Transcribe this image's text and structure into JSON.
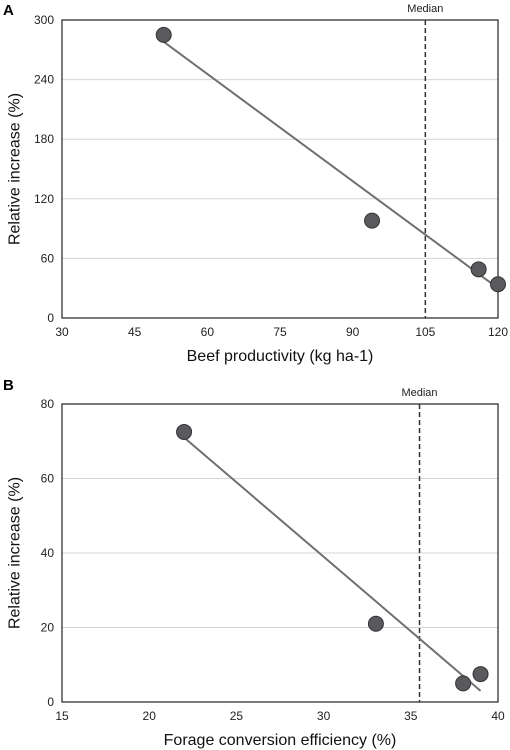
{
  "chart_data": [
    {
      "panel": "A",
      "type": "scatter",
      "xlabel": "Beef productivity (kg ha-1)",
      "ylabel": "Relative increase (%)",
      "xlim": [
        30,
        120
      ],
      "ylim": [
        0,
        300
      ],
      "xticks": [
        30,
        45,
        60,
        75,
        90,
        105,
        120
      ],
      "yticks": [
        0,
        60,
        120,
        180,
        240,
        300
      ],
      "grid": "horizontal",
      "points": [
        {
          "x": 51,
          "y": 285
        },
        {
          "x": 94,
          "y": 98
        },
        {
          "x": 116,
          "y": 49
        },
        {
          "x": 120,
          "y": 34
        }
      ],
      "trendline": {
        "x": [
          51,
          120
        ],
        "y": [
          278,
          30
        ]
      },
      "median": {
        "x": 105,
        "label": "Median"
      }
    },
    {
      "panel": "B",
      "type": "scatter",
      "xlabel": "Forage conversion efficiency (%)",
      "ylabel": "Relative increase (%)",
      "xlim": [
        15,
        40
      ],
      "ylim": [
        0,
        80
      ],
      "xticks": [
        15,
        20,
        25,
        30,
        35,
        40
      ],
      "yticks": [
        0,
        20,
        40,
        60,
        80
      ],
      "grid": "horizontal",
      "points": [
        {
          "x": 22,
          "y": 72.5
        },
        {
          "x": 33,
          "y": 21
        },
        {
          "x": 38,
          "y": 5
        },
        {
          "x": 39,
          "y": 7.5
        }
      ],
      "trendline": {
        "x": [
          22,
          39
        ],
        "y": [
          71,
          3
        ]
      },
      "median": {
        "x": 35.5,
        "label": "Median"
      }
    }
  ]
}
